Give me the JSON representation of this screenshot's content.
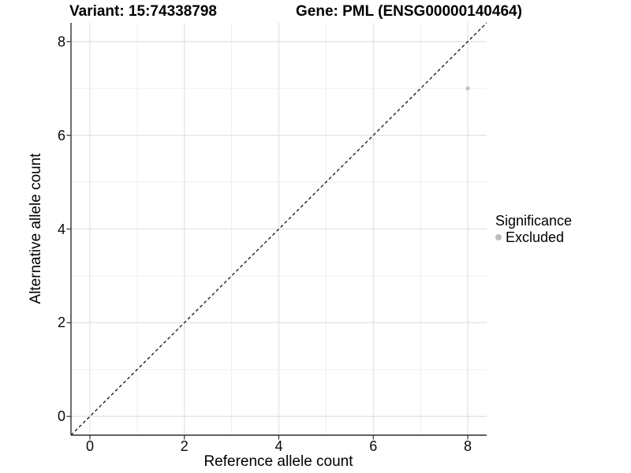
{
  "header": {
    "variant_title": "Variant: 15:74338798",
    "gene_title": "Gene: PML (ENSG00000140464)"
  },
  "chart_data": {
    "type": "scatter",
    "title": "Variant: 15:74338798  Gene: PML (ENSG00000140464)",
    "xlabel": "Reference allele count",
    "ylabel": "Alternative allele count",
    "xlim": [
      -0.4,
      8.4
    ],
    "ylim": [
      -0.4,
      8.4
    ],
    "x_ticks": [
      0,
      2,
      4,
      6,
      8
    ],
    "y_ticks": [
      0,
      2,
      4,
      6,
      8
    ],
    "x_minor_ticks": [
      1,
      3,
      5,
      7
    ],
    "y_minor_ticks": [
      1,
      3,
      5,
      7
    ],
    "grid": "on",
    "points": [
      {
        "x": 8,
        "y": 7,
        "series": "Excluded"
      }
    ],
    "identity_line": {
      "style": "dashed",
      "from": [
        -0.4,
        -0.4
      ],
      "to": [
        8.4,
        8.4
      ],
      "color": "#000000"
    },
    "legend": {
      "title": "Significance",
      "position": "right",
      "items": [
        {
          "label": "Excluded",
          "color": "#bdbdbd"
        }
      ]
    },
    "colors": {
      "point_excluded": "#bdbdbd",
      "grid_major": "#e2e2e2",
      "grid_minor": "#efefef",
      "axis_line": "#2f2f2f",
      "dashed_line": "#000000"
    }
  }
}
